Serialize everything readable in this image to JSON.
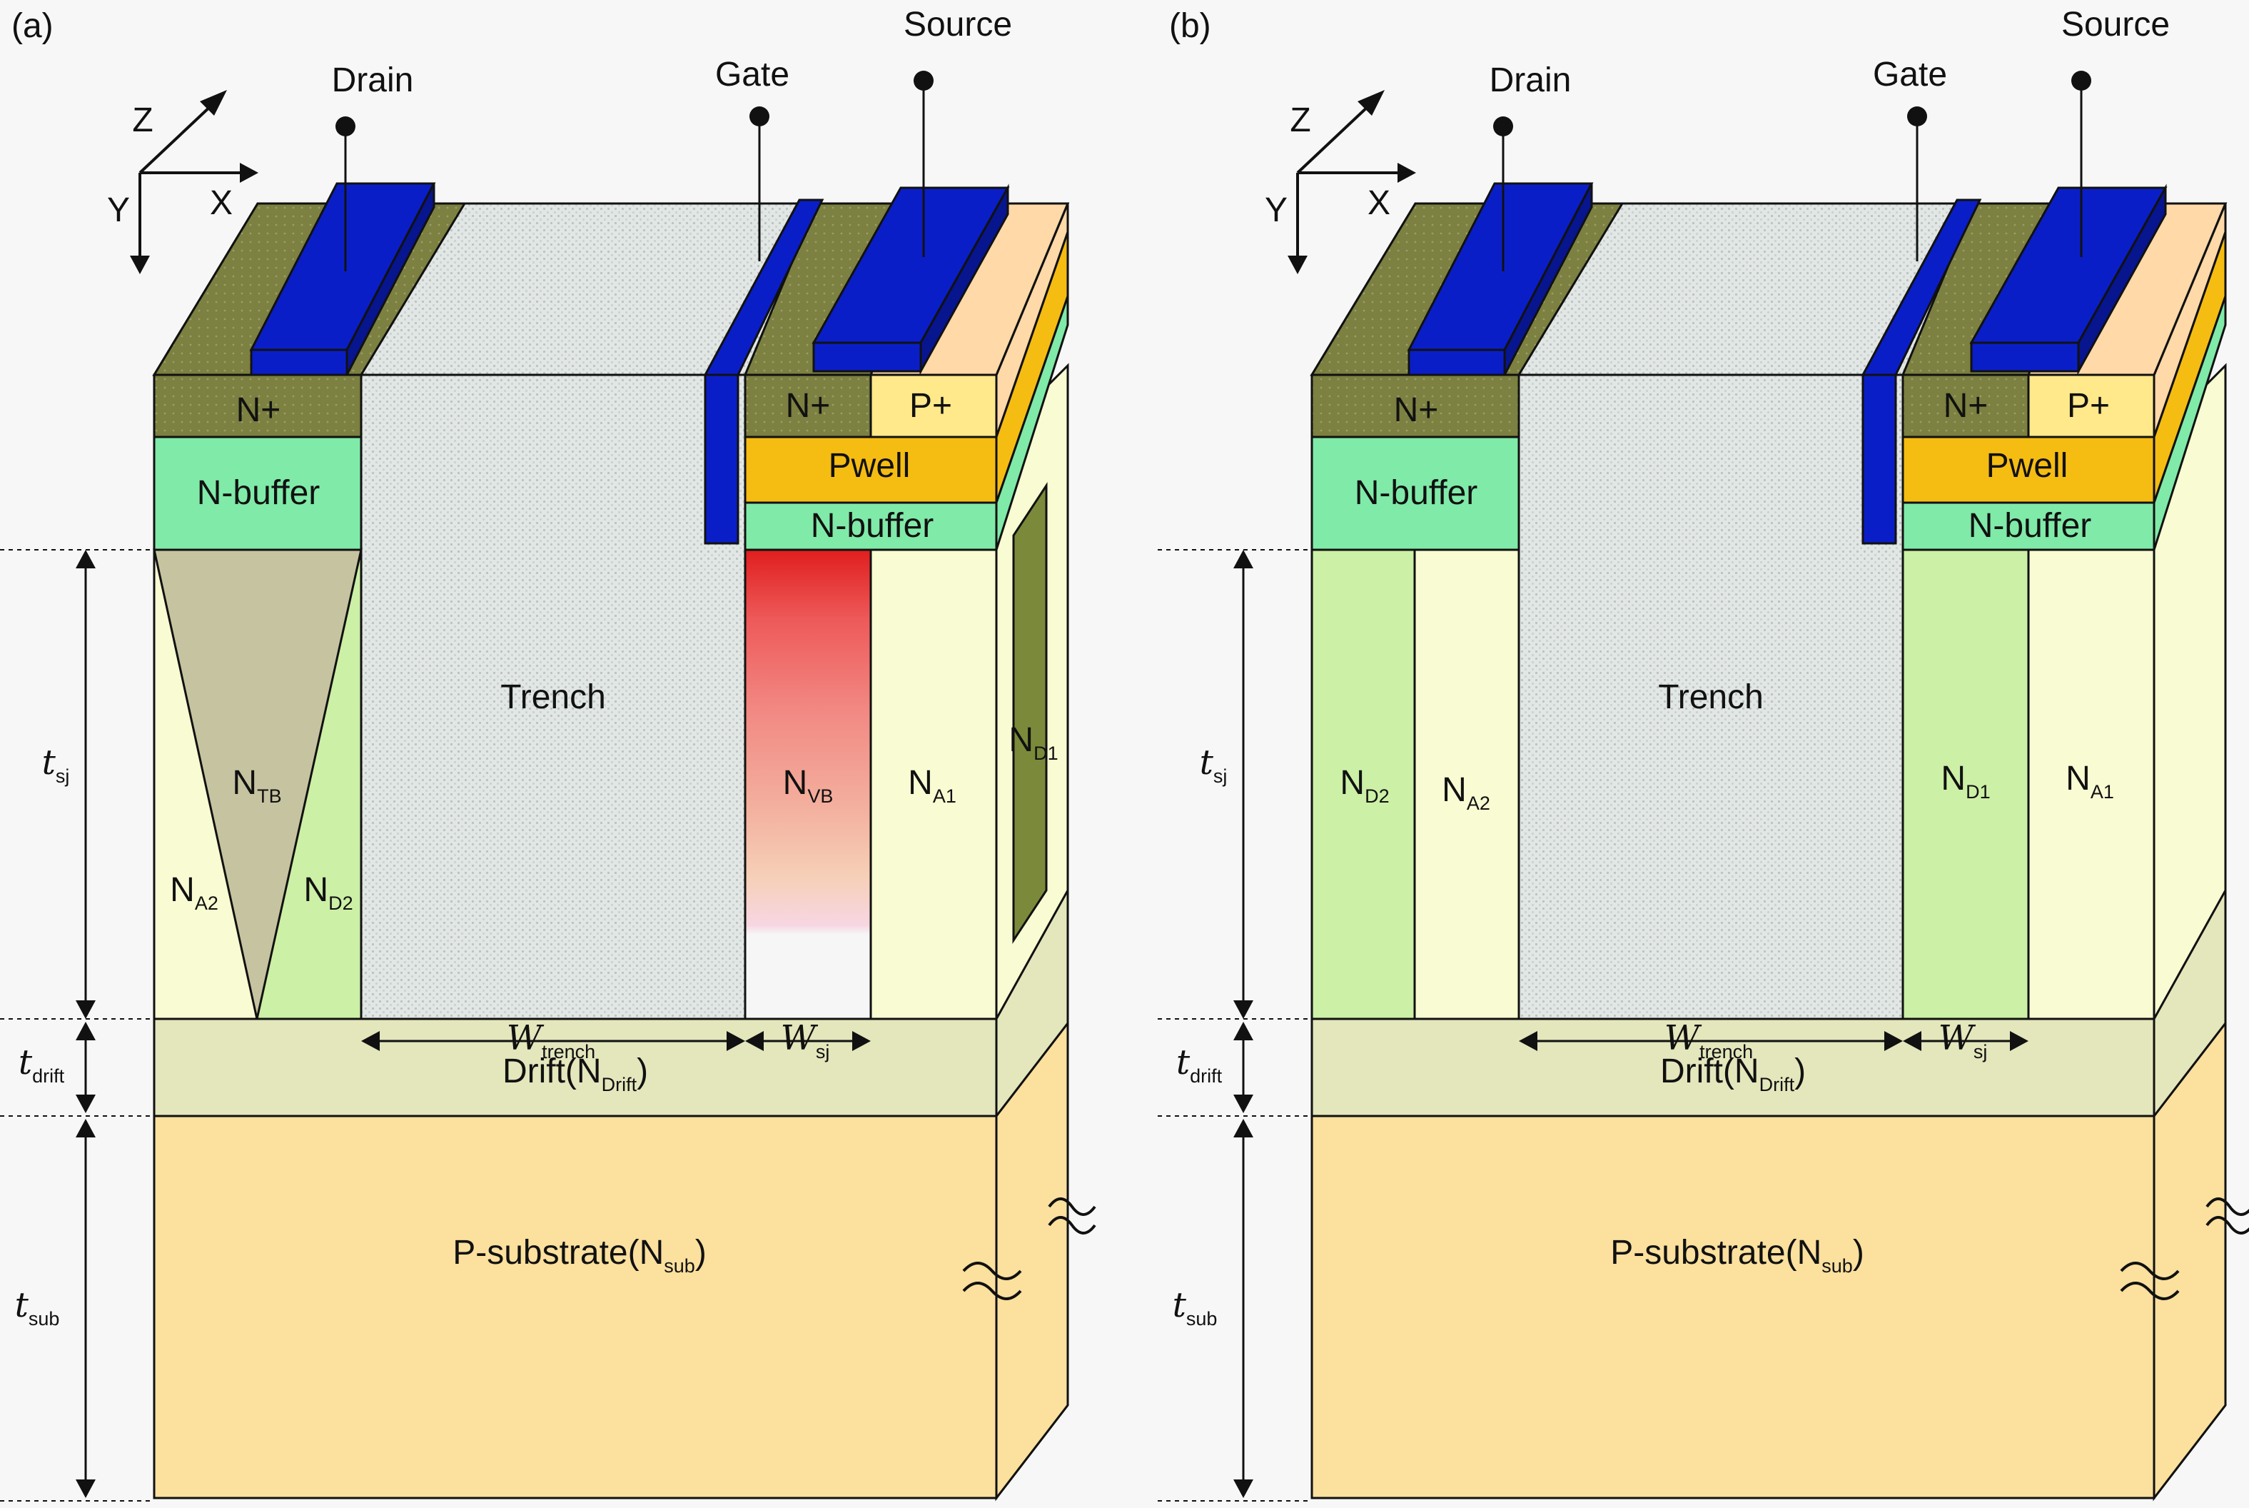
{
  "colors": {
    "nplus": "#7c8040",
    "nbuffer": "#80eaa8",
    "pplus": "#ffe98a",
    "pwell": "#f5bc12",
    "electrode": "#0a1ec8",
    "na": "#f9fcd2",
    "nd": "#ccf0a6",
    "ntb": "#c6c4a0",
    "drift": "#e4e6bc",
    "substrate": "#fbe09e",
    "trench": "#e2e7e5",
    "nd1_side": "#7a8a3a"
  },
  "panels": [
    {
      "panel_label": "(a)",
      "terminals": {
        "drain": "Drain",
        "gate": "Gate",
        "source": "Source"
      },
      "axes": {
        "x": "X",
        "y": "Y",
        "z": "Z"
      },
      "labels": {
        "nplus_left": "N+",
        "nplus_right": "N+",
        "pplus": "P+",
        "pwell": "Pwell",
        "nbuffer_left": "N-buffer",
        "nbuffer_right": "N-buffer",
        "trench": "Trench",
        "drift": "Drift(N",
        "drift_sub": "Drift",
        "drift_close": ")",
        "substrate": "P-substrate(N",
        "substrate_sub": "sub",
        "substrate_close": ")",
        "ntb": "N",
        "ntb_sub": "TB",
        "na2": "N",
        "na2_sub": "A2",
        "nd2": "N",
        "nd2_sub": "D2",
        "nvb": "N",
        "nvb_sub": "VB",
        "na1": "N",
        "na1_sub": "A1",
        "nd1": "N",
        "nd1_sub": "D1",
        "w_trench": "W",
        "w_trench_sub": "trench",
        "w_sj": "W",
        "w_sj_sub": "sj",
        "t_sj": "t",
        "t_sj_sub": "sj",
        "t_drift": "t",
        "t_drift_sub": "drift",
        "t_sub": "t",
        "t_sub_sub": "sub"
      }
    },
    {
      "panel_label": "(b)",
      "terminals": {
        "drain": "Drain",
        "gate": "Gate",
        "source": "Source"
      },
      "axes": {
        "x": "X",
        "y": "Y",
        "z": "Z"
      },
      "labels": {
        "nplus_left": "N+",
        "nplus_right": "N+",
        "pplus": "P+",
        "pwell": "Pwell",
        "nbuffer_left": "N-buffer",
        "nbuffer_right": "N-buffer",
        "trench": "Trench",
        "drift": "Drift(N",
        "drift_sub": "Drift",
        "drift_close": ")",
        "substrate": "P-substrate(N",
        "substrate_sub": "sub",
        "substrate_close": ")",
        "nd2": "N",
        "nd2_sub": "D2",
        "na2": "N",
        "na2_sub": "A2",
        "nd1": "N",
        "nd1_sub": "D1",
        "na1": "N",
        "na1_sub": "A1",
        "w_trench": "W",
        "w_trench_sub": "trench",
        "w_sj": "W",
        "w_sj_sub": "sj",
        "t_sj": "t",
        "t_sj_sub": "sj",
        "t_drift": "t",
        "t_drift_sub": "drift",
        "t_sub": "t",
        "t_sub_sub": "sub"
      }
    }
  ]
}
